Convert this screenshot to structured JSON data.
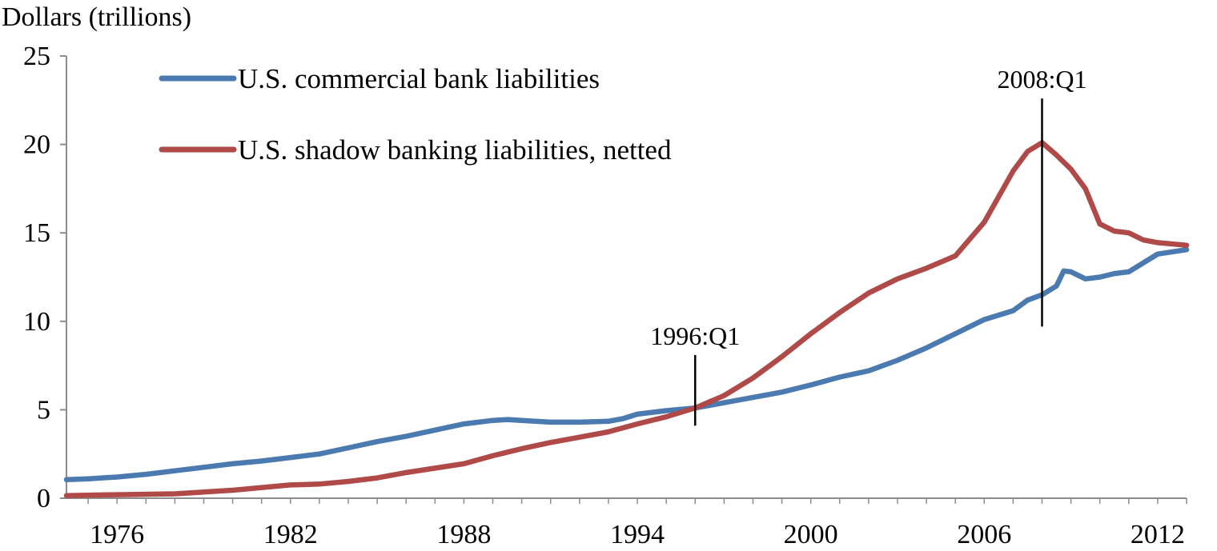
{
  "chart_data": {
    "type": "line",
    "title": "",
    "ylabel": "Dollars (trillions)",
    "xlabel": "",
    "xlim": [
      1974.25,
      2013.0
    ],
    "ylim": [
      0,
      25
    ],
    "yticks": [
      0,
      5,
      10,
      15,
      20,
      25
    ],
    "xticks": [
      1976,
      1982,
      1988,
      1994,
      2000,
      2006,
      2012
    ],
    "grid": false,
    "legend": "top-left",
    "series": [
      {
        "name": "U.S. commercial bank liabilities",
        "color": "#4A7AB0",
        "points": [
          [
            1974.25,
            1.05
          ],
          [
            1975,
            1.1
          ],
          [
            1976,
            1.2
          ],
          [
            1977,
            1.35
          ],
          [
            1978,
            1.55
          ],
          [
            1979,
            1.75
          ],
          [
            1980,
            1.95
          ],
          [
            1981,
            2.1
          ],
          [
            1982,
            2.3
          ],
          [
            1983,
            2.5
          ],
          [
            1984,
            2.85
          ],
          [
            1985,
            3.2
          ],
          [
            1986,
            3.5
          ],
          [
            1987,
            3.85
          ],
          [
            1988,
            4.2
          ],
          [
            1989,
            4.4
          ],
          [
            1989.5,
            4.45
          ],
          [
            1990,
            4.4
          ],
          [
            1991,
            4.3
          ],
          [
            1992,
            4.3
          ],
          [
            1993,
            4.35
          ],
          [
            1993.5,
            4.5
          ],
          [
            1994,
            4.75
          ],
          [
            1995,
            4.95
          ],
          [
            1996,
            5.1
          ],
          [
            1997,
            5.4
          ],
          [
            1998,
            5.7
          ],
          [
            1999,
            6.0
          ],
          [
            2000,
            6.4
          ],
          [
            2001,
            6.85
          ],
          [
            2002,
            7.2
          ],
          [
            2003,
            7.8
          ],
          [
            2004,
            8.5
          ],
          [
            2005,
            9.3
          ],
          [
            2006,
            10.1
          ],
          [
            2007,
            10.6
          ],
          [
            2007.5,
            11.2
          ],
          [
            2008,
            11.5
          ],
          [
            2008.5,
            12.0
          ],
          [
            2008.75,
            12.85
          ],
          [
            2009,
            12.8
          ],
          [
            2009.5,
            12.4
          ],
          [
            2010,
            12.5
          ],
          [
            2010.5,
            12.7
          ],
          [
            2011,
            12.8
          ],
          [
            2011.5,
            13.3
          ],
          [
            2012,
            13.8
          ],
          [
            2013,
            14.05
          ]
        ]
      },
      {
        "name": "U.S. shadow banking liabilities, netted",
        "color": "#B04A48",
        "points": [
          [
            1974.25,
            0.15
          ],
          [
            1976,
            0.2
          ],
          [
            1978,
            0.25
          ],
          [
            1980,
            0.45
          ],
          [
            1982,
            0.75
          ],
          [
            1983,
            0.8
          ],
          [
            1984,
            0.95
          ],
          [
            1985,
            1.15
          ],
          [
            1986,
            1.45
          ],
          [
            1987,
            1.7
          ],
          [
            1988,
            1.95
          ],
          [
            1989,
            2.4
          ],
          [
            1990,
            2.8
          ],
          [
            1991,
            3.15
          ],
          [
            1992,
            3.45
          ],
          [
            1993,
            3.75
          ],
          [
            1994,
            4.2
          ],
          [
            1995,
            4.6
          ],
          [
            1996,
            5.1
          ],
          [
            1997,
            5.8
          ],
          [
            1998,
            6.8
          ],
          [
            1999,
            8.0
          ],
          [
            2000,
            9.3
          ],
          [
            2001,
            10.5
          ],
          [
            2002,
            11.6
          ],
          [
            2003,
            12.4
          ],
          [
            2004,
            13.0
          ],
          [
            2005,
            13.7
          ],
          [
            2006,
            15.6
          ],
          [
            2007,
            18.5
          ],
          [
            2007.5,
            19.6
          ],
          [
            2008,
            20.1
          ],
          [
            2008.5,
            19.4
          ],
          [
            2009,
            18.6
          ],
          [
            2009.5,
            17.5
          ],
          [
            2010,
            15.5
          ],
          [
            2010.5,
            15.1
          ],
          [
            2011,
            15.0
          ],
          [
            2011.5,
            14.6
          ],
          [
            2012,
            14.45
          ],
          [
            2013,
            14.3
          ]
        ]
      }
    ],
    "annotations": [
      {
        "label": "1996:Q1",
        "x": 1996.0,
        "y_from": 4.1,
        "y_to": 8.1
      },
      {
        "label": "2008:Q1",
        "x": 2008.0,
        "y_from": 9.7,
        "y_to": 22.6
      }
    ]
  }
}
